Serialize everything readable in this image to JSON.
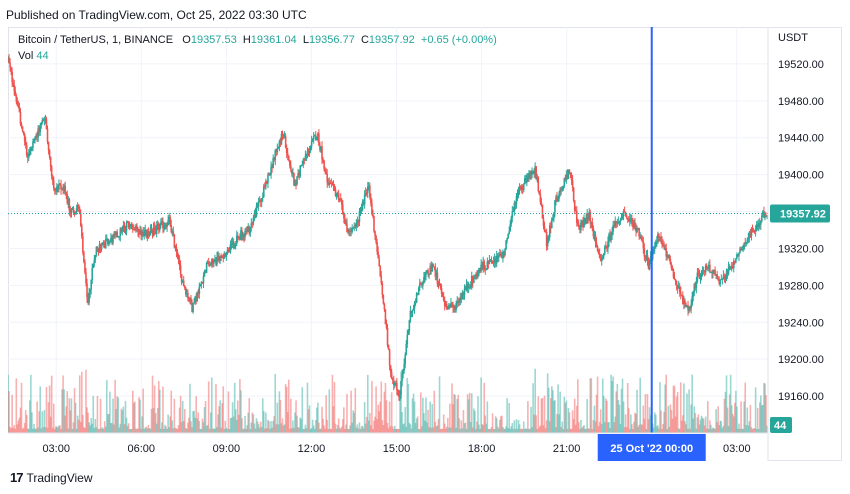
{
  "header": {
    "published": "Published on TradingView.com, Oct 25, 2022 03:30 UTC"
  },
  "legend": {
    "symbol": "Bitcoin / TetherUS, 1, BINANCE",
    "o_label": "O",
    "o_value": "19357.53",
    "h_label": "H",
    "h_value": "19361.04",
    "l_label": "L",
    "l_value": "19356.77",
    "c_label": "C",
    "c_value": "19357.92",
    "change": "+0.65 (+0.00%)",
    "vol_label": "Vol",
    "vol_value": "44"
  },
  "footer": {
    "brand": "TradingView",
    "logo": "17"
  },
  "colors": {
    "up": "#26a69a",
    "down": "#ef5350",
    "crosshair": "#2962ff",
    "price_tag": "#26a69a",
    "grid": "#f0f3fa"
  },
  "chart_data": {
    "type": "candlestick",
    "title": "Bitcoin / TetherUS, 1, BINANCE",
    "currency": "USDT",
    "ylim": [
      19120,
      19560
    ],
    "y_ticks": [
      19160,
      19200,
      19240,
      19280,
      19320,
      19360,
      19400,
      19440,
      19480,
      19520
    ],
    "y_tick_labels": [
      "19160.00",
      "19200.00",
      "19240.00",
      "19280.00",
      "19320.00",
      "19360.00",
      "19400.00",
      "19440.00",
      "19480.00",
      "19520.00"
    ],
    "x_tick_labels": [
      "03:00",
      "06:00",
      "09:00",
      "12:00",
      "15:00",
      "18:00",
      "21:00",
      "00:00",
      "03:00"
    ],
    "x_tick_hours": [
      3,
      6,
      9,
      12,
      15,
      18,
      21,
      24,
      27
    ],
    "x_range_hours": [
      1.3,
      28.1
    ],
    "crosshair": {
      "hour": 24,
      "label": "25 Oct '22   00:00"
    },
    "last_price": {
      "value": 19357.92,
      "label": "19357.92"
    },
    "volume_last": {
      "value": 44,
      "label": "44"
    },
    "price_path": [
      [
        1.3,
        19525
      ],
      [
        1.8,
        19450
      ],
      [
        2.0,
        19420
      ],
      [
        2.3,
        19440
      ],
      [
        2.6,
        19465
      ],
      [
        2.9,
        19385
      ],
      [
        3.3,
        19385
      ],
      [
        3.5,
        19360
      ],
      [
        3.8,
        19365
      ],
      [
        4.1,
        19260
      ],
      [
        4.4,
        19320
      ],
      [
        5.0,
        19330
      ],
      [
        5.5,
        19345
      ],
      [
        6.2,
        19335
      ],
      [
        7.0,
        19350
      ],
      [
        7.4,
        19290
      ],
      [
        7.8,
        19255
      ],
      [
        8.3,
        19300
      ],
      [
        9.0,
        19315
      ],
      [
        9.5,
        19335
      ],
      [
        9.8,
        19340
      ],
      [
        10.4,
        19390
      ],
      [
        10.7,
        19420
      ],
      [
        11.0,
        19445
      ],
      [
        11.4,
        19390
      ],
      [
        11.8,
        19420
      ],
      [
        12.2,
        19445
      ],
      [
        12.6,
        19390
      ],
      [
        13.0,
        19375
      ],
      [
        13.3,
        19335
      ],
      [
        13.6,
        19345
      ],
      [
        14.0,
        19390
      ],
      [
        14.4,
        19300
      ],
      [
        14.8,
        19185
      ],
      [
        15.1,
        19160
      ],
      [
        15.5,
        19250
      ],
      [
        15.9,
        19285
      ],
      [
        16.3,
        19300
      ],
      [
        16.7,
        19260
      ],
      [
        17.0,
        19255
      ],
      [
        17.4,
        19275
      ],
      [
        18.0,
        19300
      ],
      [
        18.4,
        19305
      ],
      [
        18.8,
        19315
      ],
      [
        19.1,
        19360
      ],
      [
        19.3,
        19380
      ],
      [
        19.6,
        19395
      ],
      [
        19.9,
        19405
      ],
      [
        20.3,
        19325
      ],
      [
        20.6,
        19370
      ],
      [
        21.1,
        19405
      ],
      [
        21.4,
        19340
      ],
      [
        21.8,
        19355
      ],
      [
        22.2,
        19305
      ],
      [
        22.6,
        19340
      ],
      [
        23.0,
        19360
      ],
      [
        23.5,
        19340
      ],
      [
        23.9,
        19300
      ],
      [
        24.2,
        19335
      ],
      [
        24.6,
        19310
      ],
      [
        25.0,
        19270
      ],
      [
        25.3,
        19250
      ],
      [
        25.6,
        19290
      ],
      [
        26.0,
        19300
      ],
      [
        26.4,
        19285
      ],
      [
        26.8,
        19300
      ],
      [
        27.2,
        19320
      ],
      [
        27.5,
        19335
      ],
      [
        27.7,
        19345
      ],
      [
        28.0,
        19360
      ]
    ]
  }
}
